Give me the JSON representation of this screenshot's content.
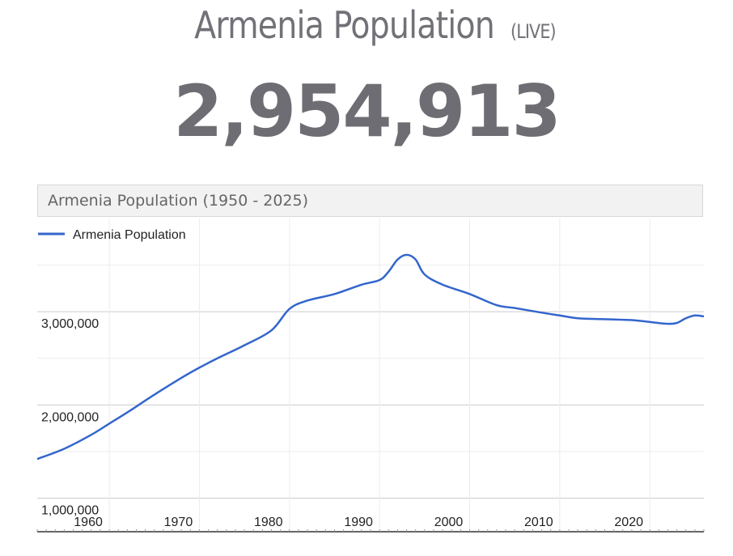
{
  "header": {
    "title": "Armenia Population",
    "live_tag": "(LIVE)",
    "live_count": "2,954,913"
  },
  "chart_data": {
    "type": "line",
    "title": "Armenia Population (1950 - 2025)",
    "legend": {
      "position": "top-left",
      "entries": [
        "Armenia Population"
      ]
    },
    "series": [
      {
        "name": "Armenia Population",
        "color": "#3366cc",
        "x": [
          1952,
          1955,
          1958,
          1960,
          1962,
          1965,
          1968,
          1970,
          1972,
          1975,
          1978,
          1980,
          1982,
          1985,
          1988,
          1990,
          1991,
          1992,
          1993,
          1994,
          1995,
          1997,
          2000,
          2003,
          2005,
          2008,
          2010,
          2012,
          2015,
          2018,
          2020,
          2022,
          2023,
          2024,
          2025,
          2026
        ],
        "y": [
          1420000,
          1530000,
          1680000,
          1800000,
          1920000,
          2110000,
          2290000,
          2400000,
          2500000,
          2640000,
          2800000,
          3030000,
          3120000,
          3190000,
          3290000,
          3340000,
          3430000,
          3560000,
          3610000,
          3560000,
          3400000,
          3290000,
          3190000,
          3070000,
          3040000,
          2990000,
          2960000,
          2930000,
          2920000,
          2910000,
          2890000,
          2870000,
          2880000,
          2930000,
          2960000,
          2950000
        ]
      }
    ],
    "xlim": [
      1952,
      2026
    ],
    "xticks": [
      1960,
      1970,
      1980,
      1990,
      2000,
      2010,
      2020
    ],
    "ylim": [
      640000,
      4000000
    ],
    "yticks": [
      1000000,
      2000000,
      3000000
    ],
    "ytick_labels": [
      "1,000,000",
      "2,000,000",
      "3,000,000"
    ],
    "xlabel": "",
    "ylabel": "",
    "grid": true
  }
}
